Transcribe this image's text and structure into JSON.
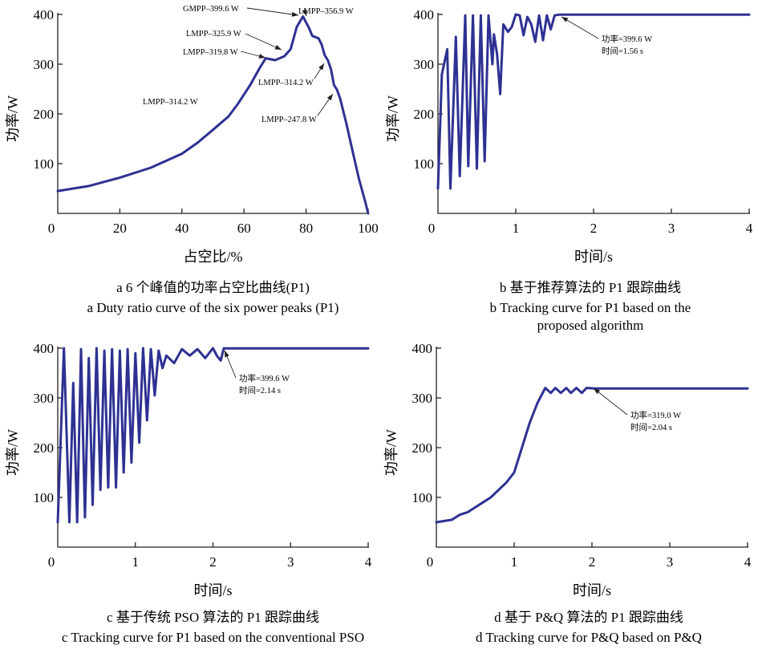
{
  "chart_data": [
    {
      "id": "a",
      "type": "line",
      "xlabel": "占空比/%",
      "ylabel": "功率/W",
      "xlim": [
        0,
        100
      ],
      "ylim": [
        0,
        400
      ],
      "xticks": [
        "0",
        "20",
        "40",
        "60",
        "80",
        "100"
      ],
      "yticks": [
        "100",
        "200",
        "300",
        "400"
      ],
      "caption_cn": "a  6 个峰值的功率占空比曲线(P1)",
      "caption_en": [
        "a  Duty ratio curve of the six power peaks (P1)"
      ],
      "series": [
        {
          "x": [
            0,
            10,
            20,
            30,
            40,
            45,
            50,
            55,
            58,
            62,
            65,
            67,
            70,
            73,
            75,
            77,
            79,
            81,
            82,
            84,
            85,
            86,
            87,
            88,
            89,
            90,
            91,
            93,
            95,
            97,
            99,
            100
          ],
          "y": [
            45,
            55,
            72,
            92,
            120,
            142,
            168,
            195,
            220,
            258,
            292,
            312,
            308,
            316,
            330,
            375,
            396,
            372,
            357,
            352,
            340,
            318,
            308,
            290,
            258,
            248,
            230,
            180,
            125,
            70,
            25,
            0
          ]
        }
      ],
      "annotations": [
        {
          "text": "GMPP–399.6 W"
        },
        {
          "text": "LMPP–356.9 W"
        },
        {
          "text": "LMPP–325.9 W"
        },
        {
          "text": "LMPP–319.8 W"
        },
        {
          "text": "LMPP–314.2 W"
        },
        {
          "text": "LMPP–314.2 W"
        },
        {
          "text": "LMPP–247.8 W"
        }
      ]
    },
    {
      "id": "b",
      "type": "line",
      "xlabel": "时间/s",
      "ylabel": "功率/W",
      "xlim": [
        0,
        4
      ],
      "ylim": [
        0,
        400
      ],
      "xticks": [
        "0",
        "1",
        "2",
        "3",
        "4"
      ],
      "yticks": [
        "100",
        "200",
        "300",
        "400"
      ],
      "caption_cn": "b  基于推荐算法的 P1 跟踪曲线",
      "caption_en": [
        "b  Tracking curve for P1 based on the",
        "proposed algorithm"
      ],
      "series": [
        {
          "x": [
            0,
            0.05,
            0.12,
            0.16,
            0.23,
            0.28,
            0.35,
            0.39,
            0.45,
            0.5,
            0.55,
            0.6,
            0.65,
            0.7,
            0.72,
            0.76,
            0.8,
            0.84,
            0.9,
            0.95,
            1.0,
            1.05,
            1.1,
            1.15,
            1.2,
            1.25,
            1.3,
            1.35,
            1.4,
            1.45,
            1.5,
            1.56,
            4.0
          ],
          "y": [
            50,
            280,
            330,
            50,
            355,
            75,
            398,
            95,
            398,
            90,
            398,
            105,
            398,
            300,
            360,
            320,
            240,
            380,
            365,
            375,
            400,
            398,
            358,
            395,
            380,
            345,
            398,
            348,
            398,
            370,
            398,
            399.6,
            399.6
          ]
        }
      ],
      "annotations": [
        {
          "text": "功率=399.6 W"
        },
        {
          "text": "时间=1.56 s"
        }
      ]
    },
    {
      "id": "c",
      "type": "line",
      "xlabel": "时间/s",
      "ylabel": "功率/W",
      "xlim": [
        0,
        4
      ],
      "ylim": [
        0,
        400
      ],
      "xticks": [
        "0",
        "1",
        "2",
        "3",
        "4"
      ],
      "yticks": [
        "100",
        "200",
        "300",
        "400"
      ],
      "caption_cn": "c  基于传统 PSO 算法的 P1 跟踪曲线",
      "caption_en": [
        "c  Tracking curve for P1 based on the conventional PSO"
      ],
      "series": [
        {
          "x": [
            0,
            0.08,
            0.15,
            0.2,
            0.25,
            0.3,
            0.35,
            0.4,
            0.45,
            0.5,
            0.55,
            0.6,
            0.65,
            0.7,
            0.75,
            0.8,
            0.85,
            0.9,
            0.95,
            1.0,
            1.05,
            1.1,
            1.15,
            1.2,
            1.25,
            1.3,
            1.35,
            1.4,
            1.5,
            1.6,
            1.7,
            1.8,
            1.9,
            2.0,
            2.05,
            2.1,
            2.14,
            4.0
          ],
          "y": [
            50,
            400,
            50,
            330,
            50,
            398,
            60,
            380,
            85,
            400,
            115,
            395,
            120,
            398,
            120,
            395,
            150,
            398,
            170,
            390,
            210,
            400,
            255,
            398,
            305,
            395,
            360,
            385,
            370,
            398,
            385,
            398,
            380,
            400,
            385,
            375,
            399.6,
            399.6
          ]
        }
      ],
      "annotations": [
        {
          "text": "功率=399.6 W"
        },
        {
          "text": "时间=2.14 s"
        }
      ]
    },
    {
      "id": "d",
      "type": "line",
      "xlabel": "时间/s",
      "ylabel": "功率/W",
      "xlim": [
        0,
        4
      ],
      "ylim": [
        0,
        400
      ],
      "xticks": [
        "0",
        "1",
        "2",
        "3",
        "4"
      ],
      "yticks": [
        "100",
        "200",
        "300",
        "400"
      ],
      "caption_cn": "d  基于 P&Q 算法的 P1 跟踪曲线",
      "caption_en": [
        "d  Tracking curve for P&Q based on P&Q"
      ],
      "series": [
        {
          "x": [
            0,
            0.2,
            0.3,
            0.4,
            0.5,
            0.6,
            0.7,
            0.8,
            0.9,
            1.0,
            1.1,
            1.2,
            1.3,
            1.4,
            1.47,
            1.53,
            1.6,
            1.67,
            1.73,
            1.8,
            1.87,
            1.93,
            2.04,
            4.0
          ],
          "y": [
            50,
            55,
            65,
            70,
            80,
            90,
            100,
            115,
            130,
            150,
            200,
            250,
            290,
            320,
            310,
            320,
            310,
            320,
            310,
            320,
            310,
            320,
            319.0,
            319.0
          ]
        }
      ],
      "annotations": [
        {
          "text": "功率=319.0 W"
        },
        {
          "text": "时间=2.04 s"
        }
      ]
    }
  ]
}
